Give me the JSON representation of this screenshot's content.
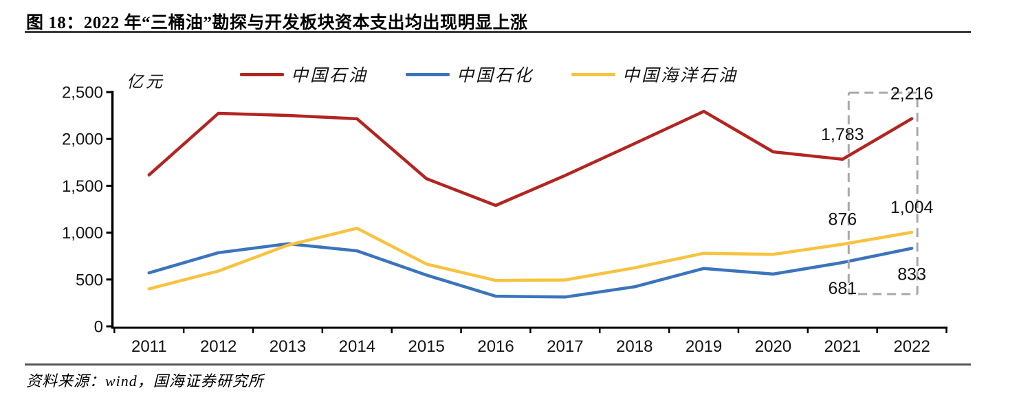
{
  "figure": {
    "title": "图 18：2022 年“三桶油”勘探与开发板块资本支出均出现明显上涨",
    "source": "资料来源：wind，国海证券研究所"
  },
  "chart_data": {
    "type": "line",
    "title": "2022 年“三桶油”勘探与开发板块资本支出均出现明显上涨",
    "unit_label": "亿元",
    "xlabel": "",
    "ylabel": "亿元",
    "ylim": [
      0,
      2500
    ],
    "y_tick_step": 500,
    "grid": false,
    "legend_position": "top",
    "categories": [
      "2011",
      "2012",
      "2013",
      "2014",
      "2015",
      "2016",
      "2017",
      "2018",
      "2019",
      "2020",
      "2021",
      "2022"
    ],
    "series": [
      {
        "name": "中国石油",
        "color": "#B22521",
        "values": [
          1616,
          2273,
          2251,
          2215,
          1576,
          1290,
          1610,
          1950,
          2294,
          1862,
          1783,
          2216
        ]
      },
      {
        "name": "中国石化",
        "color": "#3C74BC",
        "values": [
          571,
          786,
          881,
          806,
          547,
          322,
          313,
          422,
          618,
          558,
          681,
          833
        ]
      },
      {
        "name": "中国海洋石油",
        "color": "#F7C340",
        "values": [
          400,
          590,
          866,
          1047,
          665,
          490,
          495,
          625,
          780,
          768,
          876,
          1004
        ]
      }
    ],
    "annotations": [
      {
        "series": "中国石油",
        "category": "2021",
        "label": "1,783",
        "placement": "above"
      },
      {
        "series": "中国石油",
        "category": "2022",
        "label": "2,216",
        "placement": "above"
      },
      {
        "series": "中国海洋石油",
        "category": "2021",
        "label": "876",
        "placement": "above"
      },
      {
        "series": "中国海洋石油",
        "category": "2022",
        "label": "1,004",
        "placement": "above"
      },
      {
        "series": "中国石化",
        "category": "2021",
        "label": "681",
        "placement": "below"
      },
      {
        "series": "中国石化",
        "category": "2022",
        "label": "833",
        "placement": "below"
      }
    ],
    "highlight_box": {
      "from_category": "2021",
      "to_category": "2022",
      "style": "dashed",
      "color": "#A8A8A8"
    },
    "axis_color": "#000000"
  }
}
